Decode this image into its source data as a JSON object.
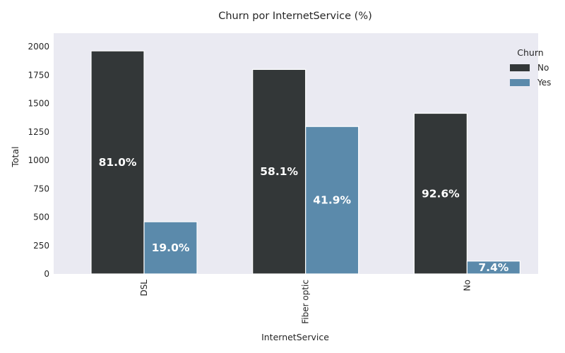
{
  "chart_data": {
    "type": "bar",
    "title": "Churn por InternetService (%)",
    "xlabel": "InternetService",
    "ylabel": "Total",
    "categories": [
      "DSL",
      "Fiber optic",
      "No"
    ],
    "ylim": [
      0,
      2050
    ],
    "yticks": [
      0,
      250,
      500,
      750,
      1000,
      1250,
      1500,
      1750,
      2000
    ],
    "grid": false,
    "legend": {
      "title": "Churn",
      "placement": "top-right"
    },
    "series": [
      {
        "name": "No",
        "color": "#333738",
        "values": [
          1962,
          1799,
          1413
        ],
        "labels": [
          "81.0%",
          "58.1%",
          "92.6%"
        ]
      },
      {
        "name": "Yes",
        "color": "#5b8aab",
        "values": [
          459,
          1297,
          113
        ],
        "labels": [
          "19.0%",
          "41.9%",
          "7.4%"
        ]
      }
    ],
    "background": "#eaeaf2"
  }
}
